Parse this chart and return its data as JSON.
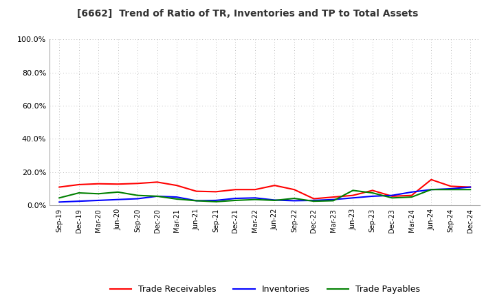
{
  "title": "[6662]  Trend of Ratio of TR, Inventories and TP to Total Assets",
  "x_labels": [
    "Sep-19",
    "Dec-19",
    "Mar-20",
    "Jun-20",
    "Sep-20",
    "Dec-20",
    "Mar-21",
    "Jun-21",
    "Sep-21",
    "Dec-21",
    "Mar-22",
    "Jun-22",
    "Sep-22",
    "Dec-22",
    "Mar-23",
    "Jun-23",
    "Sep-23",
    "Dec-23",
    "Mar-24",
    "Jun-24",
    "Sep-24",
    "Dec-24"
  ],
  "trade_receivables": [
    0.11,
    0.125,
    0.13,
    0.128,
    0.132,
    0.14,
    0.12,
    0.085,
    0.082,
    0.095,
    0.095,
    0.12,
    0.095,
    0.04,
    0.05,
    0.06,
    0.09,
    0.055,
    0.06,
    0.155,
    0.115,
    0.11
  ],
  "inventories": [
    0.02,
    0.025,
    0.03,
    0.035,
    0.04,
    0.055,
    0.05,
    0.028,
    0.03,
    0.042,
    0.045,
    0.032,
    0.028,
    0.03,
    0.035,
    0.045,
    0.055,
    0.06,
    0.08,
    0.095,
    0.1,
    0.11
  ],
  "trade_payables": [
    0.045,
    0.075,
    0.07,
    0.08,
    0.06,
    0.055,
    0.038,
    0.028,
    0.022,
    0.03,
    0.035,
    0.03,
    0.042,
    0.025,
    0.028,
    0.09,
    0.075,
    0.045,
    0.05,
    0.095,
    0.095,
    0.095
  ],
  "tr_color": "#FF0000",
  "inv_color": "#0000FF",
  "tp_color": "#008000",
  "ylim_max": 1.0,
  "yticks": [
    0.0,
    0.2,
    0.4,
    0.6,
    0.8,
    1.0
  ],
  "legend_tr": "Trade Receivables",
  "legend_inv": "Inventories",
  "legend_tp": "Trade Payables",
  "background_color": "#FFFFFF",
  "grid_color": "#AAAAAA",
  "title_color": "#333333"
}
